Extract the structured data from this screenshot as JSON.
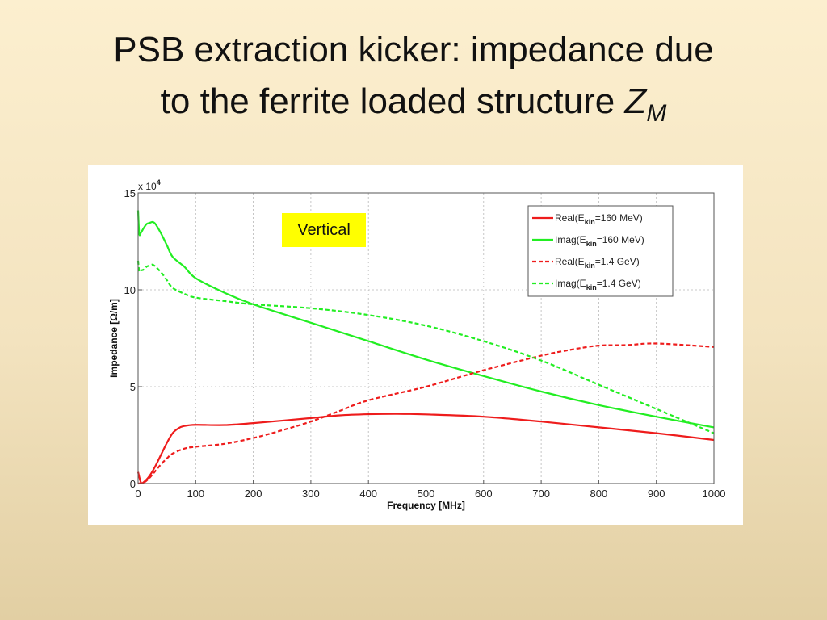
{
  "slide": {
    "title_line1": "PSB extraction kicker: impedance due",
    "title_line2_prefix": "to the ferrite loaded structure ",
    "title_symbol": "Z",
    "title_subscript": "M"
  },
  "chart_data": {
    "type": "line",
    "title": "",
    "xlabel": "Frequency [MHz]",
    "ylabel": "Impedance [Ω/m]",
    "y_multiplier_label": "x 10",
    "y_multiplier_exp": "4",
    "xlim": [
      0,
      1000
    ],
    "ylim": [
      0,
      15
    ],
    "xticks": [
      0,
      100,
      200,
      300,
      400,
      500,
      600,
      700,
      800,
      900,
      1000
    ],
    "yticks": [
      0,
      5,
      10,
      15
    ],
    "grid": true,
    "legend_position": "top-right",
    "annotation": "Vertical",
    "series": [
      {
        "name": "Real(Ekin=160 MeV)",
        "legend_prefix": "Real(E",
        "legend_sub": "kin",
        "legend_suffix": "=160 MeV)",
        "color": "#ee1c1c",
        "dash": "solid",
        "x": [
          0,
          5,
          10,
          20,
          30,
          40,
          50,
          60,
          70,
          80,
          100,
          150,
          200,
          300,
          350,
          400,
          450,
          500,
          600,
          700,
          800,
          900,
          1000
        ],
        "y": [
          0.6,
          0.05,
          0.08,
          0.4,
          0.9,
          1.5,
          2.1,
          2.6,
          2.85,
          2.97,
          3.03,
          3.02,
          3.12,
          3.38,
          3.52,
          3.58,
          3.6,
          3.57,
          3.45,
          3.2,
          2.9,
          2.6,
          2.25
        ]
      },
      {
        "name": "Imag(Ekin=160 MeV)",
        "legend_prefix": "Imag(E",
        "legend_sub": "kin",
        "legend_suffix": "=160 MeV)",
        "color": "#22ee22",
        "dash": "solid",
        "x": [
          0,
          2,
          5,
          10,
          15,
          20,
          25,
          30,
          40,
          50,
          60,
          80,
          100,
          150,
          200,
          300,
          400,
          500,
          600,
          700,
          800,
          900,
          1000
        ],
        "y": [
          14.1,
          12.9,
          12.95,
          13.2,
          13.4,
          13.45,
          13.5,
          13.4,
          12.9,
          12.3,
          11.7,
          11.2,
          10.6,
          9.85,
          9.25,
          8.3,
          7.35,
          6.4,
          5.55,
          4.75,
          4.05,
          3.45,
          2.9
        ]
      },
      {
        "name": "Real(Ekin=1.4 GeV)",
        "legend_prefix": "Real(E",
        "legend_sub": "kin",
        "legend_suffix": "=1.4 GeV)",
        "color": "#ee1c1c",
        "dash": "dashed",
        "x": [
          0,
          10,
          20,
          30,
          40,
          50,
          60,
          80,
          100,
          150,
          200,
          250,
          300,
          350,
          400,
          500,
          600,
          700,
          750,
          800,
          850,
          900,
          1000
        ],
        "y": [
          0.0,
          0.05,
          0.3,
          0.65,
          1.0,
          1.3,
          1.55,
          1.8,
          1.9,
          2.05,
          2.35,
          2.75,
          3.2,
          3.75,
          4.3,
          5.0,
          5.85,
          6.6,
          6.9,
          7.12,
          7.15,
          7.23,
          7.05
        ]
      },
      {
        "name": "Imag(Ekin=1.4 GeV)",
        "legend_prefix": "Imag(E",
        "legend_sub": "kin",
        "legend_suffix": "=1.4 GeV)",
        "color": "#22ee22",
        "dash": "dashed",
        "x": [
          0,
          2,
          5,
          10,
          15,
          20,
          25,
          30,
          40,
          50,
          60,
          80,
          100,
          150,
          200,
          300,
          400,
          500,
          600,
          700,
          800,
          900,
          1000
        ],
        "y": [
          11.5,
          10.95,
          11.0,
          11.05,
          11.2,
          11.25,
          11.3,
          11.2,
          10.9,
          10.5,
          10.1,
          9.8,
          9.6,
          9.42,
          9.25,
          9.05,
          8.7,
          8.15,
          7.35,
          6.35,
          5.1,
          3.85,
          2.6
        ]
      }
    ]
  }
}
